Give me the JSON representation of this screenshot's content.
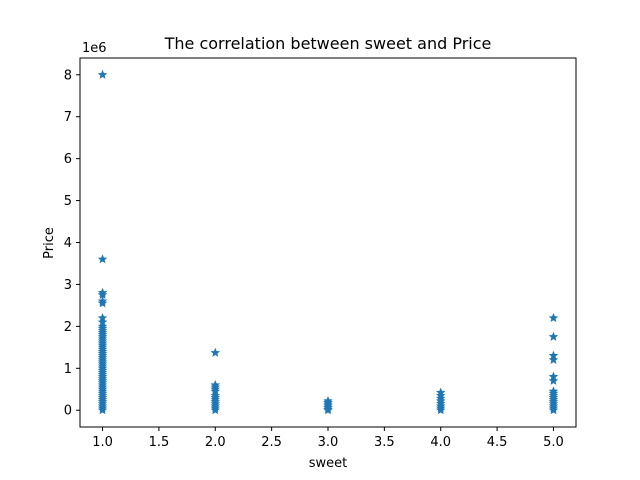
{
  "chart_data": {
    "type": "scatter",
    "title": "The correlation between sweet and Price",
    "xlabel": "sweet",
    "ylabel": "Price",
    "y_offset_text": "1e6",
    "xlim": [
      0.8,
      5.2
    ],
    "ylim": [
      -0.4,
      8.4
    ],
    "y_scale_multiplier": 1000000,
    "x_ticks": [
      1.0,
      1.5,
      2.0,
      2.5,
      3.0,
      3.5,
      4.0,
      4.5,
      5.0
    ],
    "x_tick_labels": [
      "1.0",
      "1.5",
      "2.0",
      "2.5",
      "3.0",
      "3.5",
      "4.0",
      "4.5",
      "5.0"
    ],
    "y_ticks": [
      0,
      1,
      2,
      3,
      4,
      5,
      6,
      7,
      8
    ],
    "y_tick_labels": [
      "0",
      "1",
      "2",
      "3",
      "4",
      "5",
      "6",
      "7",
      "8"
    ],
    "grid": false,
    "marker": "star",
    "color": "#1f77b4",
    "points": [
      {
        "x": 1,
        "y": 8.0
      },
      {
        "x": 1,
        "y": 3.6
      },
      {
        "x": 1,
        "y": 2.8
      },
      {
        "x": 1,
        "y": 2.75
      },
      {
        "x": 1,
        "y": 2.6
      },
      {
        "x": 1,
        "y": 2.55
      },
      {
        "x": 1,
        "y": 2.2
      },
      {
        "x": 1,
        "y": 2.1
      },
      {
        "x": 1,
        "y": 2.0
      },
      {
        "x": 1,
        "y": 1.95
      },
      {
        "x": 1,
        "y": 1.9
      },
      {
        "x": 1,
        "y": 1.85
      },
      {
        "x": 1,
        "y": 1.8
      },
      {
        "x": 1,
        "y": 1.75
      },
      {
        "x": 1,
        "y": 1.7
      },
      {
        "x": 1,
        "y": 1.65
      },
      {
        "x": 1,
        "y": 1.6
      },
      {
        "x": 1,
        "y": 1.55
      },
      {
        "x": 1,
        "y": 1.5
      },
      {
        "x": 1,
        "y": 1.45
      },
      {
        "x": 1,
        "y": 1.4
      },
      {
        "x": 1,
        "y": 1.35
      },
      {
        "x": 1,
        "y": 1.3
      },
      {
        "x": 1,
        "y": 1.25
      },
      {
        "x": 1,
        "y": 1.2
      },
      {
        "x": 1,
        "y": 1.15
      },
      {
        "x": 1,
        "y": 1.1
      },
      {
        "x": 1,
        "y": 1.05
      },
      {
        "x": 1,
        "y": 1.0
      },
      {
        "x": 1,
        "y": 0.95
      },
      {
        "x": 1,
        "y": 0.9
      },
      {
        "x": 1,
        "y": 0.85
      },
      {
        "x": 1,
        "y": 0.8
      },
      {
        "x": 1,
        "y": 0.75
      },
      {
        "x": 1,
        "y": 0.7
      },
      {
        "x": 1,
        "y": 0.65
      },
      {
        "x": 1,
        "y": 0.6
      },
      {
        "x": 1,
        "y": 0.55
      },
      {
        "x": 1,
        "y": 0.5
      },
      {
        "x": 1,
        "y": 0.45
      },
      {
        "x": 1,
        "y": 0.4
      },
      {
        "x": 1,
        "y": 0.35
      },
      {
        "x": 1,
        "y": 0.3
      },
      {
        "x": 1,
        "y": 0.25
      },
      {
        "x": 1,
        "y": 0.2
      },
      {
        "x": 1,
        "y": 0.15
      },
      {
        "x": 1,
        "y": 0.1
      },
      {
        "x": 1,
        "y": 0.05
      },
      {
        "x": 1,
        "y": 0.0
      },
      {
        "x": 2,
        "y": 1.37
      },
      {
        "x": 2,
        "y": 0.6
      },
      {
        "x": 2,
        "y": 0.55
      },
      {
        "x": 2,
        "y": 0.5
      },
      {
        "x": 2,
        "y": 0.45
      },
      {
        "x": 2,
        "y": 0.35
      },
      {
        "x": 2,
        "y": 0.3
      },
      {
        "x": 2,
        "y": 0.25
      },
      {
        "x": 2,
        "y": 0.2
      },
      {
        "x": 2,
        "y": 0.15
      },
      {
        "x": 2,
        "y": 0.1
      },
      {
        "x": 2,
        "y": 0.05
      },
      {
        "x": 2,
        "y": 0.0
      },
      {
        "x": 3,
        "y": 0.22
      },
      {
        "x": 3,
        "y": 0.18
      },
      {
        "x": 3,
        "y": 0.14
      },
      {
        "x": 3,
        "y": 0.1
      },
      {
        "x": 3,
        "y": 0.06
      },
      {
        "x": 3,
        "y": 0.02
      },
      {
        "x": 3,
        "y": 0.0
      },
      {
        "x": 4,
        "y": 0.42
      },
      {
        "x": 4,
        "y": 0.35
      },
      {
        "x": 4,
        "y": 0.28
      },
      {
        "x": 4,
        "y": 0.22
      },
      {
        "x": 4,
        "y": 0.16
      },
      {
        "x": 4,
        "y": 0.1
      },
      {
        "x": 4,
        "y": 0.05
      },
      {
        "x": 4,
        "y": 0.0
      },
      {
        "x": 5,
        "y": 2.2
      },
      {
        "x": 5,
        "y": 1.75
      },
      {
        "x": 5,
        "y": 1.3
      },
      {
        "x": 5,
        "y": 1.2
      },
      {
        "x": 5,
        "y": 0.8
      },
      {
        "x": 5,
        "y": 0.7
      },
      {
        "x": 5,
        "y": 0.45
      },
      {
        "x": 5,
        "y": 0.4
      },
      {
        "x": 5,
        "y": 0.35
      },
      {
        "x": 5,
        "y": 0.3
      },
      {
        "x": 5,
        "y": 0.25
      },
      {
        "x": 5,
        "y": 0.2
      },
      {
        "x": 5,
        "y": 0.15
      },
      {
        "x": 5,
        "y": 0.1
      },
      {
        "x": 5,
        "y": 0.05
      },
      {
        "x": 5,
        "y": 0.0
      }
    ]
  }
}
